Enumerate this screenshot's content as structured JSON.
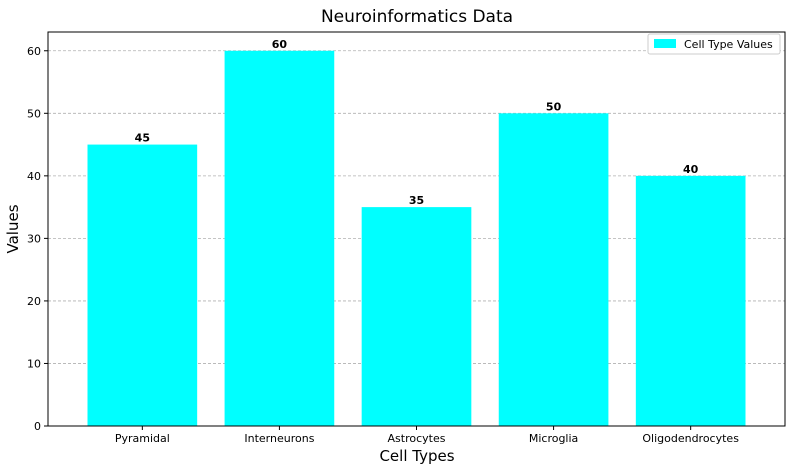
{
  "chart_data": {
    "type": "bar",
    "title": "Neuroinformatics Data",
    "xlabel": "Cell Types",
    "ylabel": "Values",
    "categories": [
      "Pyramidal",
      "Interneurons",
      "Astrocytes",
      "Microglia",
      "Oligodendrocytes"
    ],
    "series": [
      {
        "name": "Cell Type Values",
        "values": [
          45,
          60,
          35,
          50,
          40
        ],
        "color": "#00ffff"
      }
    ],
    "ylim": [
      0,
      63
    ],
    "yticks": [
      0,
      10,
      20,
      30,
      40,
      50,
      60
    ],
    "grid": {
      "y": true,
      "x": false,
      "style": "dashed"
    },
    "legend": {
      "placement": "top-right"
    },
    "data_labels": true
  }
}
